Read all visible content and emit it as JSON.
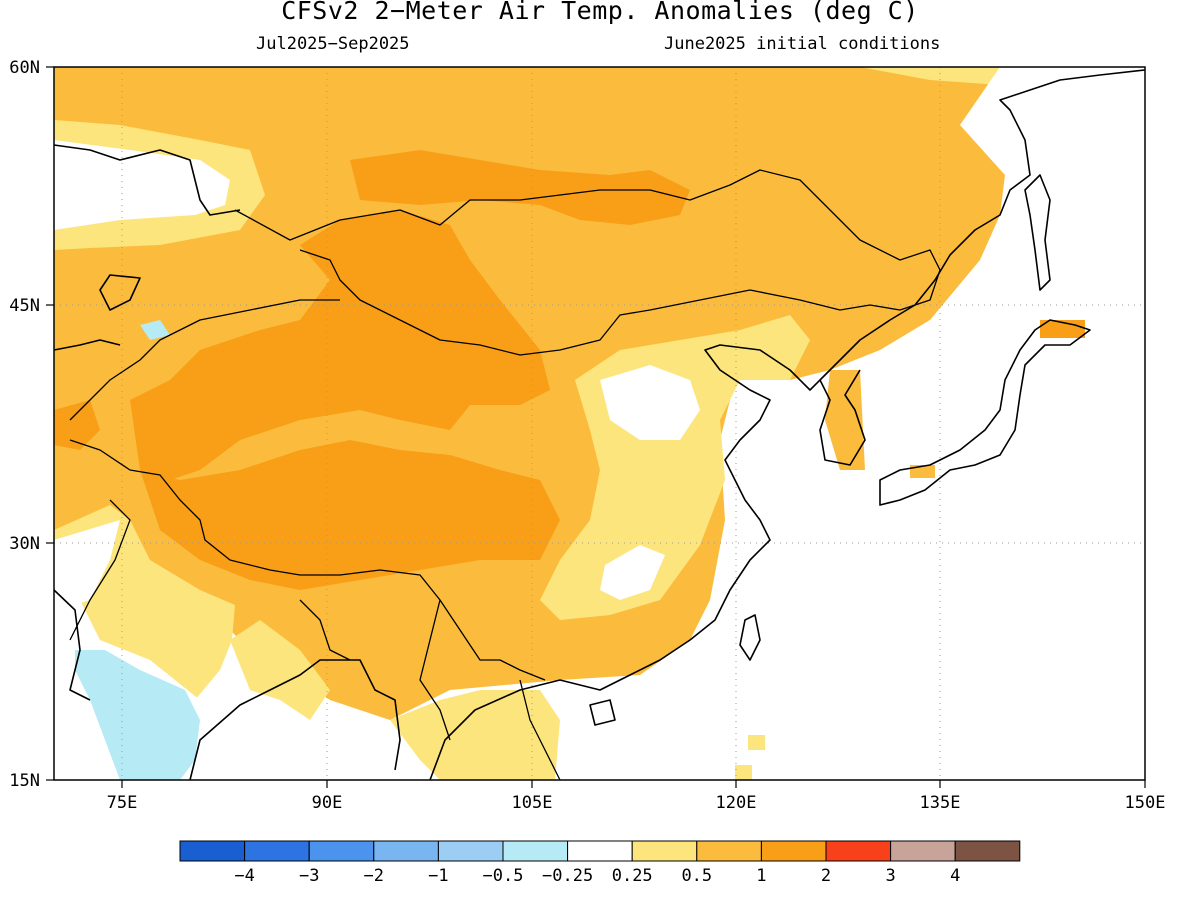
{
  "title": "CFSv2 2−Meter Air Temp. Anomalies (deg C)",
  "subtitle_left": "Jul2025−Sep2025",
  "subtitle_right": "June2025 initial conditions",
  "map": {
    "lat_range": [
      15,
      60
    ],
    "lon_range": [
      70,
      150
    ],
    "lat_ticks": [
      "60N",
      "45N",
      "30N",
      "15N"
    ],
    "lon_ticks": [
      "75E",
      "90E",
      "105E",
      "120E",
      "135E",
      "150E"
    ],
    "grid": "dotted"
  },
  "colorbar": {
    "labels": [
      "−4",
      "−3",
      "−2",
      "−1",
      "−0.5",
      "−0.25",
      "0.25",
      "0.5",
      "1",
      "2",
      "3",
      "4"
    ],
    "colors": [
      "#1a5fd1",
      "#2d74e2",
      "#4b93ec",
      "#79b5f0",
      "#9ccdf4",
      "#b6eaf5",
      "#ffffff",
      "#fde57d",
      "#fbbc3d",
      "#f89e17",
      "#f8401a",
      "#c8a399",
      "#7d5344"
    ]
  }
}
